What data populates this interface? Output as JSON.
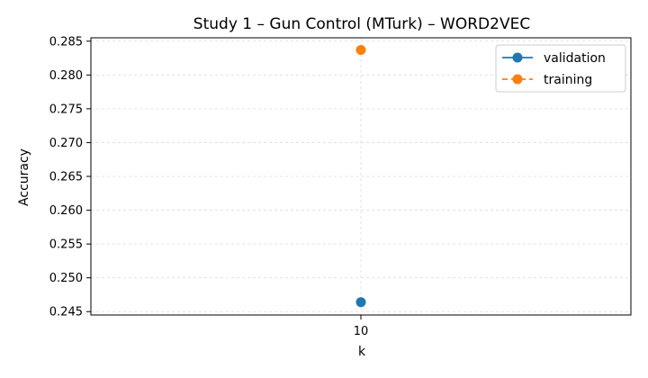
{
  "chart_data": {
    "type": "line",
    "title": "Study 1 – Gun Control (MTurk) – WORD2VEC",
    "xlabel": "k",
    "ylabel": "Accuracy",
    "categories": [
      "10"
    ],
    "x": [
      10
    ],
    "ylim": [
      0.2445,
      0.2855
    ],
    "yticks": [
      0.245,
      0.25,
      0.255,
      0.26,
      0.265,
      0.27,
      0.275,
      0.28,
      0.285
    ],
    "ytick_labels": [
      "0.245",
      "0.250",
      "0.255",
      "0.260",
      "0.265",
      "0.270",
      "0.275",
      "0.280",
      "0.285"
    ],
    "grid": true,
    "legend_position": "top-right",
    "series": [
      {
        "name": "validation",
        "values": [
          0.2464
        ],
        "color": "#1f77b4",
        "linestyle": "solid",
        "marker": "circle"
      },
      {
        "name": "training",
        "values": [
          0.2837
        ],
        "color": "#ff7f0e",
        "linestyle": "dashed",
        "marker": "circle"
      }
    ]
  }
}
